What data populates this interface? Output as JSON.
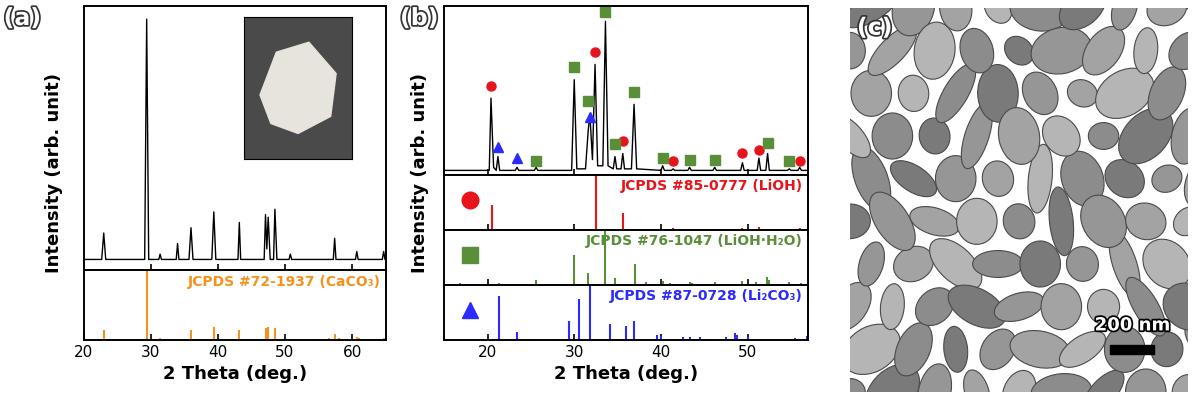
{
  "chart_data": [
    {
      "type": "line",
      "annotations": [
        "(a)"
      ],
      "color": "#000000",
      "xlabel": "2 Theta (deg.)",
      "ylabel": "Intensity (arb. unit)",
      "xlim": [
        20,
        65
      ],
      "ylim": [
        0,
        100
      ],
      "xticks": [
        20,
        30,
        40,
        50,
        60
      ],
      "tick_labels": "x",
      "x": [
        20,
        22.7,
        23.0,
        23.3,
        29.1,
        29.4,
        29.7,
        31.2,
        31.4,
        31.6,
        33.8,
        34.0,
        34.2,
        35.7,
        36.0,
        36.3,
        39.1,
        39.4,
        39.7,
        43.0,
        43.2,
        43.4,
        46.9,
        47.1,
        47.3,
        47.5,
        47.8,
        48.3,
        48.5,
        48.8,
        50.6,
        50.8,
        51.0,
        57.2,
        57.4,
        57.6,
        60.5,
        60.7,
        60.9,
        64.5,
        64.7,
        64.9,
        65
      ],
      "values": [
        4,
        4,
        14,
        4,
        4,
        95,
        4,
        4,
        6,
        4,
        4,
        10,
        4,
        4,
        16,
        4,
        4,
        22,
        4,
        4,
        18,
        4,
        4,
        21,
        8,
        20,
        4,
        4,
        23,
        4,
        4,
        6,
        4,
        4,
        12,
        4,
        4,
        7,
        4,
        4,
        7,
        4,
        4
      ],
      "references": [
        {
          "label": "JCPDS #72-1937 (CaCO₃)",
          "color": "#f5921e",
          "ylim": [
            0,
            100
          ],
          "x": [
            23.0,
            29.4,
            31.4,
            36.0,
            39.4,
            43.2,
            47.1,
            47.5,
            48.5,
            56.6,
            57.4,
            58.1,
            60.7,
            61.0,
            63.1,
            64.7
          ],
          "values": [
            15,
            100,
            3,
            14,
            18,
            14,
            17,
            18,
            17,
            3,
            9,
            3,
            5,
            3,
            2,
            3
          ]
        }
      ]
    },
    {
      "type": "line",
      "annotations": [
        "(b)"
      ],
      "color": "#000000",
      "xlabel": "2 Theta (deg.)",
      "ylabel": "Intensity (arb. unit)",
      "xlim": [
        15,
        57
      ],
      "ylim": [
        0,
        110
      ],
      "xticks": [
        20,
        30,
        40,
        50
      ],
      "tick_labels": "x",
      "x": [
        15,
        20.2,
        20.4,
        20.7,
        21.0,
        21.2,
        21.4,
        23.2,
        23.4,
        23.6,
        25.4,
        25.6,
        25.8,
        29.7,
        30.0,
        30.3,
        31.3,
        31.6,
        31.8,
        32.1,
        32.4,
        32.7,
        33.3,
        33.6,
        33.9,
        34.5,
        34.7,
        34.9,
        35.4,
        35.6,
        35.8,
        36.6,
        36.9,
        37.2,
        40.0,
        40.2,
        40.4,
        41.2,
        41.4,
        41.6,
        43.1,
        43.3,
        43.5,
        46.0,
        46.2,
        46.4,
        49.2,
        49.4,
        49.6,
        51.1,
        51.3,
        51.5,
        52.1,
        52.3,
        52.5,
        54.6,
        54.8,
        55.0,
        55.8,
        56.0,
        56.2,
        57
      ],
      "values": [
        3,
        3,
        50,
        5,
        3,
        12,
        3,
        3,
        5,
        3,
        3,
        5,
        3,
        3,
        62,
        4,
        4,
        28,
        40,
        10,
        72,
        6,
        6,
        100,
        6,
        4,
        12,
        4,
        4,
        14,
        4,
        4,
        46,
        4,
        3,
        6,
        3,
        3,
        4,
        3,
        3,
        5,
        3,
        3,
        5,
        3,
        3,
        8,
        3,
        3,
        11,
        3,
        3,
        14,
        3,
        3,
        4,
        3,
        3,
        5,
        3,
        3
      ],
      "marks": [
        {
          "marker": "circle",
          "color": "#e8141b",
          "x": [
            20.4,
            32.4,
            35.6,
            41.4,
            49.4,
            51.3,
            56.0
          ],
          "values": [
            58,
            80,
            22,
            9,
            14,
            16,
            9
          ]
        },
        {
          "marker": "square",
          "color": "#5a8f3a",
          "x": [
            25.6,
            30.0,
            31.6,
            33.6,
            34.7,
            36.9,
            40.2,
            43.3,
            46.2,
            52.3,
            54.8
          ],
          "values": [
            9,
            70,
            48,
            106,
            20,
            54,
            11,
            10,
            10,
            21,
            9
          ]
        },
        {
          "marker": "triangle",
          "color": "#2b2bff",
          "x": [
            21.2,
            23.4,
            31.8
          ],
          "values": [
            18,
            11,
            38
          ]
        }
      ],
      "references": [
        {
          "label": "JCPDS #85-0777 (LiOH)",
          "color": "#e8141b",
          "marker": "circle",
          "ylim": [
            0,
            100
          ],
          "x": [
            20.5,
            32.5,
            35.6,
            41.4,
            49.4,
            51.3,
            56.0
          ],
          "values": [
            45,
            100,
            30,
            3,
            4,
            6,
            3
          ]
        },
        {
          "label": "JCPDS #76-1047 (LiOH·H₂O)",
          "color": "#5a8f3a",
          "marker": "square",
          "ylim": [
            0,
            100
          ],
          "x": [
            16.8,
            21.3,
            25.6,
            30.0,
            31.6,
            33.6,
            34.7,
            37.0,
            38.3,
            40.2,
            41.1,
            43.3,
            43.6,
            46.2,
            49.4,
            51.0,
            52.2,
            52.5,
            54.8,
            56.2
          ],
          "values": [
            3,
            3,
            10,
            55,
            22,
            100,
            12,
            38,
            5,
            8,
            4,
            6,
            4,
            6,
            8,
            5,
            15,
            10,
            6,
            4
          ]
        },
        {
          "label": "JCPDS #87-0728 (Li₂CO₃)",
          "color": "#2b2bff",
          "marker": "triangle",
          "ylim": [
            0,
            100
          ],
          "x": [
            21.3,
            23.4,
            29.4,
            30.6,
            31.8,
            34.1,
            36.0,
            36.9,
            39.5,
            40.0,
            42.6,
            43.3,
            44.5,
            47.5,
            48.5,
            48.8,
            50.0,
            55.5,
            56.8
          ],
          "values": [
            80,
            15,
            35,
            75,
            100,
            30,
            25,
            35,
            10,
            8,
            6,
            6,
            5,
            6,
            13,
            10,
            5,
            4,
            8
          ]
        }
      ]
    },
    {
      "type": "image",
      "annotations": [
        "(c)"
      ],
      "scale_bar": "200 nm"
    }
  ]
}
